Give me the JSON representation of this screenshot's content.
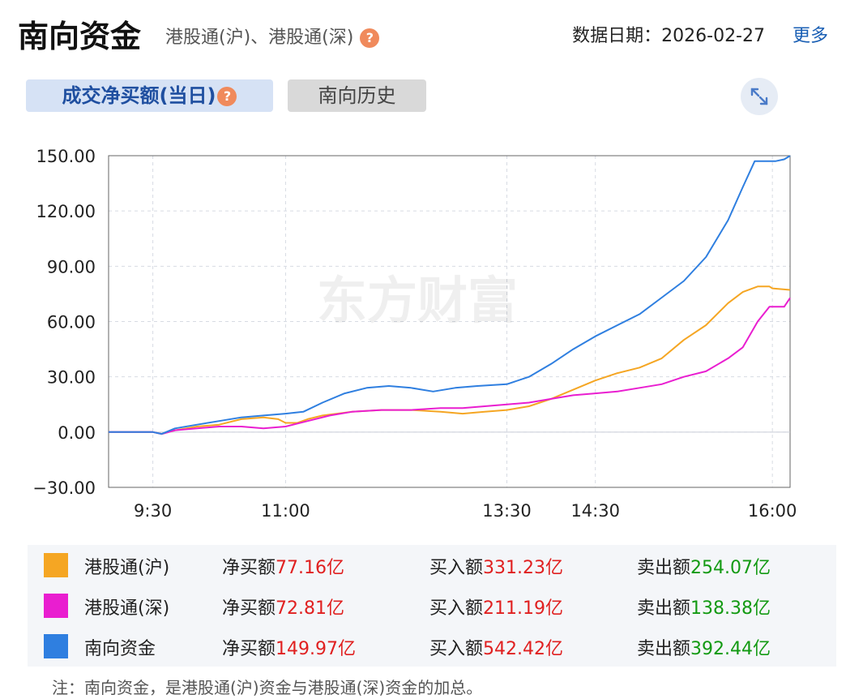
{
  "header": {
    "title": "南向资金",
    "subtitle": "港股通(沪)、港股通(深)",
    "date_label": "数据日期：",
    "date_value": "2026-02-27",
    "more": "更多"
  },
  "tabs": [
    {
      "label": "成交净买额(当日)",
      "active": true
    },
    {
      "label": "南向历史",
      "active": false
    }
  ],
  "help_icon": "question-mark",
  "expand_icon": "expand-arrows",
  "watermark": "东方财富",
  "chart_data": {
    "type": "line",
    "ylim": [
      -30,
      150
    ],
    "yticks": [
      "150.00",
      "120.00",
      "90.00",
      "60.00",
      "30.00",
      "0.00",
      "−30.00"
    ],
    "ytick_values": [
      150,
      120,
      90,
      60,
      30,
      0,
      -30
    ],
    "xticks": [
      "9:30",
      "11:00",
      "13:30",
      "14:30",
      "16:00"
    ],
    "xtick_minutes": [
      30,
      120,
      270,
      330,
      450
    ],
    "xlim_minutes": [
      0,
      462
    ],
    "x_note": "minutes since 9:00 (lunch break omitted on axis)",
    "grid": true,
    "series": [
      {
        "name": "港股通(沪)",
        "color": "#f5a623",
        "points": [
          [
            0,
            0
          ],
          [
            30,
            0
          ],
          [
            36,
            -1
          ],
          [
            45,
            1
          ],
          [
            60,
            3
          ],
          [
            75,
            4
          ],
          [
            90,
            7
          ],
          [
            105,
            8
          ],
          [
            115,
            7
          ],
          [
            120,
            5
          ],
          [
            128,
            5
          ],
          [
            135,
            7
          ],
          [
            145,
            9
          ],
          [
            165,
            11
          ],
          [
            185,
            12
          ],
          [
            205,
            12
          ],
          [
            225,
            11
          ],
          [
            240,
            10
          ],
          [
            255,
            11
          ],
          [
            270,
            12
          ],
          [
            285,
            14
          ],
          [
            300,
            18
          ],
          [
            315,
            23
          ],
          [
            330,
            28
          ],
          [
            345,
            32
          ],
          [
            360,
            35
          ],
          [
            375,
            40
          ],
          [
            390,
            50
          ],
          [
            405,
            58
          ],
          [
            420,
            70
          ],
          [
            430,
            76
          ],
          [
            440,
            79
          ],
          [
            448,
            79
          ],
          [
            450,
            78
          ],
          [
            462,
            77.16
          ]
        ]
      },
      {
        "name": "港股通(深)",
        "color": "#e91ed0",
        "points": [
          [
            0,
            0
          ],
          [
            30,
            0
          ],
          [
            36,
            -1
          ],
          [
            45,
            1
          ],
          [
            60,
            2
          ],
          [
            75,
            3
          ],
          [
            90,
            3
          ],
          [
            105,
            2
          ],
          [
            120,
            3
          ],
          [
            135,
            6
          ],
          [
            150,
            9
          ],
          [
            165,
            11
          ],
          [
            185,
            12
          ],
          [
            205,
            12
          ],
          [
            225,
            13
          ],
          [
            240,
            13
          ],
          [
            255,
            14
          ],
          [
            270,
            15
          ],
          [
            285,
            16
          ],
          [
            300,
            18
          ],
          [
            315,
            20
          ],
          [
            330,
            21
          ],
          [
            345,
            22
          ],
          [
            360,
            24
          ],
          [
            375,
            26
          ],
          [
            390,
            30
          ],
          [
            405,
            33
          ],
          [
            420,
            40
          ],
          [
            430,
            46
          ],
          [
            440,
            60
          ],
          [
            448,
            68
          ],
          [
            455,
            68
          ],
          [
            458,
            68
          ],
          [
            462,
            72.81
          ]
        ]
      },
      {
        "name": "南向资金",
        "color": "#2f7fe0",
        "points": [
          [
            0,
            0
          ],
          [
            30,
            0
          ],
          [
            36,
            -1
          ],
          [
            45,
            2
          ],
          [
            60,
            4
          ],
          [
            75,
            6
          ],
          [
            90,
            8
          ],
          [
            105,
            9
          ],
          [
            120,
            10
          ],
          [
            132,
            11
          ],
          [
            145,
            16
          ],
          [
            160,
            21
          ],
          [
            175,
            24
          ],
          [
            190,
            25
          ],
          [
            205,
            24
          ],
          [
            220,
            22
          ],
          [
            235,
            24
          ],
          [
            250,
            25
          ],
          [
            270,
            26
          ],
          [
            285,
            30
          ],
          [
            300,
            37
          ],
          [
            315,
            45
          ],
          [
            330,
            52
          ],
          [
            345,
            58
          ],
          [
            360,
            64
          ],
          [
            375,
            73
          ],
          [
            390,
            82
          ],
          [
            405,
            95
          ],
          [
            420,
            115
          ],
          [
            430,
            133
          ],
          [
            438,
            147
          ],
          [
            445,
            147
          ],
          [
            452,
            147
          ],
          [
            458,
            148
          ],
          [
            462,
            149.97
          ]
        ]
      }
    ]
  },
  "legend": [
    {
      "name": "港股通(沪)",
      "color": "#f5a623",
      "net_label": "净买额",
      "net_value": "77.16亿",
      "buy_label": "买入额",
      "buy_value": "331.23亿",
      "sell_label": "卖出额",
      "sell_value": "254.07亿"
    },
    {
      "name": "港股通(深)",
      "color": "#e91ed0",
      "net_label": "净买额",
      "net_value": "72.81亿",
      "buy_label": "买入额",
      "buy_value": "211.19亿",
      "sell_label": "卖出额",
      "sell_value": "138.38亿"
    },
    {
      "name": "南向资金",
      "color": "#2f7fe0",
      "net_label": "净买额",
      "net_value": "149.97亿",
      "buy_label": "买入额",
      "buy_value": "542.42亿",
      "sell_label": "卖出额",
      "sell_value": "392.44亿"
    }
  ],
  "note": "注：南向资金，是港股通(沪)资金与港股通(深)资金的加总。"
}
